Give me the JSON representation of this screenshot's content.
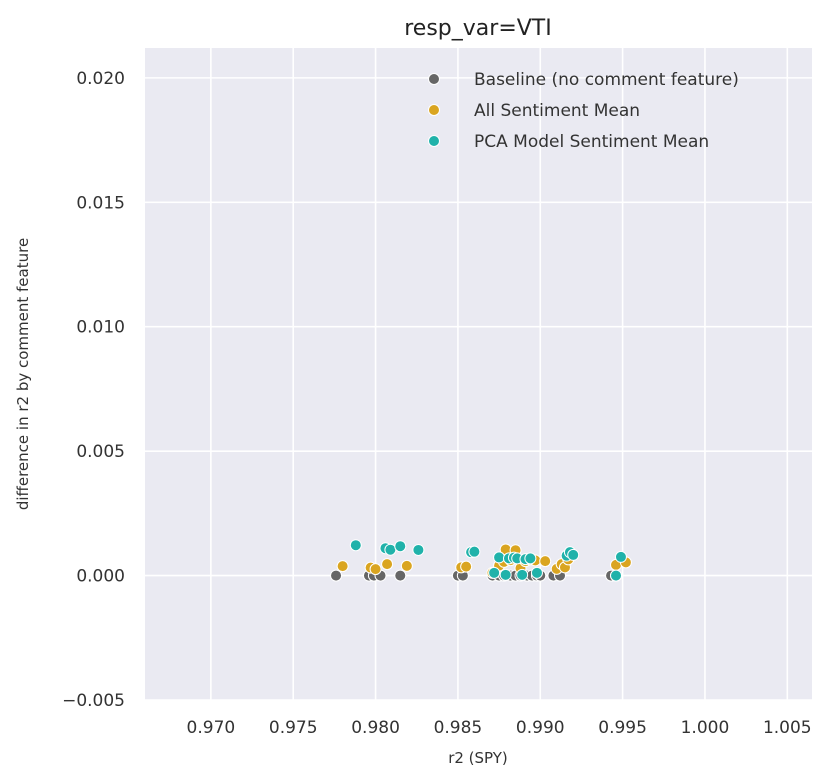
{
  "chart_data": {
    "type": "scatter",
    "title": "resp_var=VTI",
    "xlabel": "r2 (SPY)",
    "ylabel": "difference in r2 by comment feature",
    "xlim": [
      0.966,
      1.0065
    ],
    "ylim": [
      -0.005,
      0.0212
    ],
    "xticks": [
      0.97,
      0.975,
      0.98,
      0.985,
      0.99,
      0.995,
      1.0,
      1.005
    ],
    "xtick_labels": [
      "0.970",
      "0.975",
      "0.980",
      "0.985",
      "0.990",
      "0.995",
      "1.000",
      "1.005"
    ],
    "yticks": [
      -0.005,
      0.0,
      0.005,
      0.01,
      0.015,
      0.02
    ],
    "ytick_labels": [
      "−0.005",
      "0.000",
      "0.005",
      "0.010",
      "0.015",
      "0.020"
    ],
    "grid": true,
    "legend_position": "top-right",
    "background_color": "#eaeaf2",
    "series": [
      {
        "name": "Baseline (no comment feature)",
        "color": "#666666",
        "points": [
          [
            0.9776,
            0
          ],
          [
            0.9796,
            0
          ],
          [
            0.9799,
            0
          ],
          [
            0.9803,
            0
          ],
          [
            0.9815,
            0
          ],
          [
            0.985,
            0
          ],
          [
            0.9853,
            0
          ],
          [
            0.9871,
            0
          ],
          [
            0.9875,
            0
          ],
          [
            0.9878,
            0
          ],
          [
            0.9882,
            0
          ],
          [
            0.9885,
            0
          ],
          [
            0.9888,
            0
          ],
          [
            0.9892,
            0
          ],
          [
            0.9895,
            0
          ],
          [
            0.9898,
            0
          ],
          [
            0.99,
            0
          ],
          [
            0.9908,
            0
          ],
          [
            0.9912,
            0
          ],
          [
            0.9943,
            0
          ],
          [
            0.9946,
            0
          ]
        ]
      },
      {
        "name": "All Sentiment Mean",
        "color": "#daa520",
        "points": [
          [
            0.978,
            0.00038
          ],
          [
            0.9797,
            0.00032
          ],
          [
            0.98,
            0.00026
          ],
          [
            0.9807,
            0.00046
          ],
          [
            0.9819,
            0.00039
          ],
          [
            0.9852,
            0.00033
          ],
          [
            0.9855,
            0.00036
          ],
          [
            0.9871,
            0.00011
          ],
          [
            0.9875,
            0.0004
          ],
          [
            0.9878,
            0.00055
          ],
          [
            0.9879,
            0.00105
          ],
          [
            0.9882,
            0.00062
          ],
          [
            0.9885,
            0.00102
          ],
          [
            0.9888,
            0.0003
          ],
          [
            0.9891,
            0.00058
          ],
          [
            0.9894,
            0.00065
          ],
          [
            0.9897,
            0.00061
          ],
          [
            0.9903,
            0.00058
          ],
          [
            0.991,
            0.00027
          ],
          [
            0.9913,
            0.00046
          ],
          [
            0.9915,
            0.00033
          ],
          [
            0.9917,
            0.00065
          ],
          [
            0.9946,
            0.00043
          ],
          [
            0.9952,
            0.00053
          ]
        ]
      },
      {
        "name": "PCA Model Sentiment Mean",
        "color": "#20b2aa",
        "points": [
          [
            0.9788,
            0.00122
          ],
          [
            0.9806,
            0.0011
          ],
          [
            0.9809,
            0.00104
          ],
          [
            0.9815,
            0.00118
          ],
          [
            0.9826,
            0.00103
          ],
          [
            0.9858,
            0.00094
          ],
          [
            0.986,
            0.00096
          ],
          [
            0.9872,
            0.00011
          ],
          [
            0.9875,
            0.00073
          ],
          [
            0.9879,
            3e-05
          ],
          [
            0.9881,
            0.00069
          ],
          [
            0.9884,
            0.00072
          ],
          [
            0.9886,
            0.00069
          ],
          [
            0.9889,
            3e-05
          ],
          [
            0.9891,
            0.00066
          ],
          [
            0.9894,
            0.00069
          ],
          [
            0.9898,
            0.00011
          ],
          [
            0.9916,
            0.0008
          ],
          [
            0.9918,
            0.00094
          ],
          [
            0.992,
            0.00083
          ],
          [
            0.9946,
            0
          ],
          [
            0.9949,
            0.00075
          ]
        ]
      }
    ]
  }
}
